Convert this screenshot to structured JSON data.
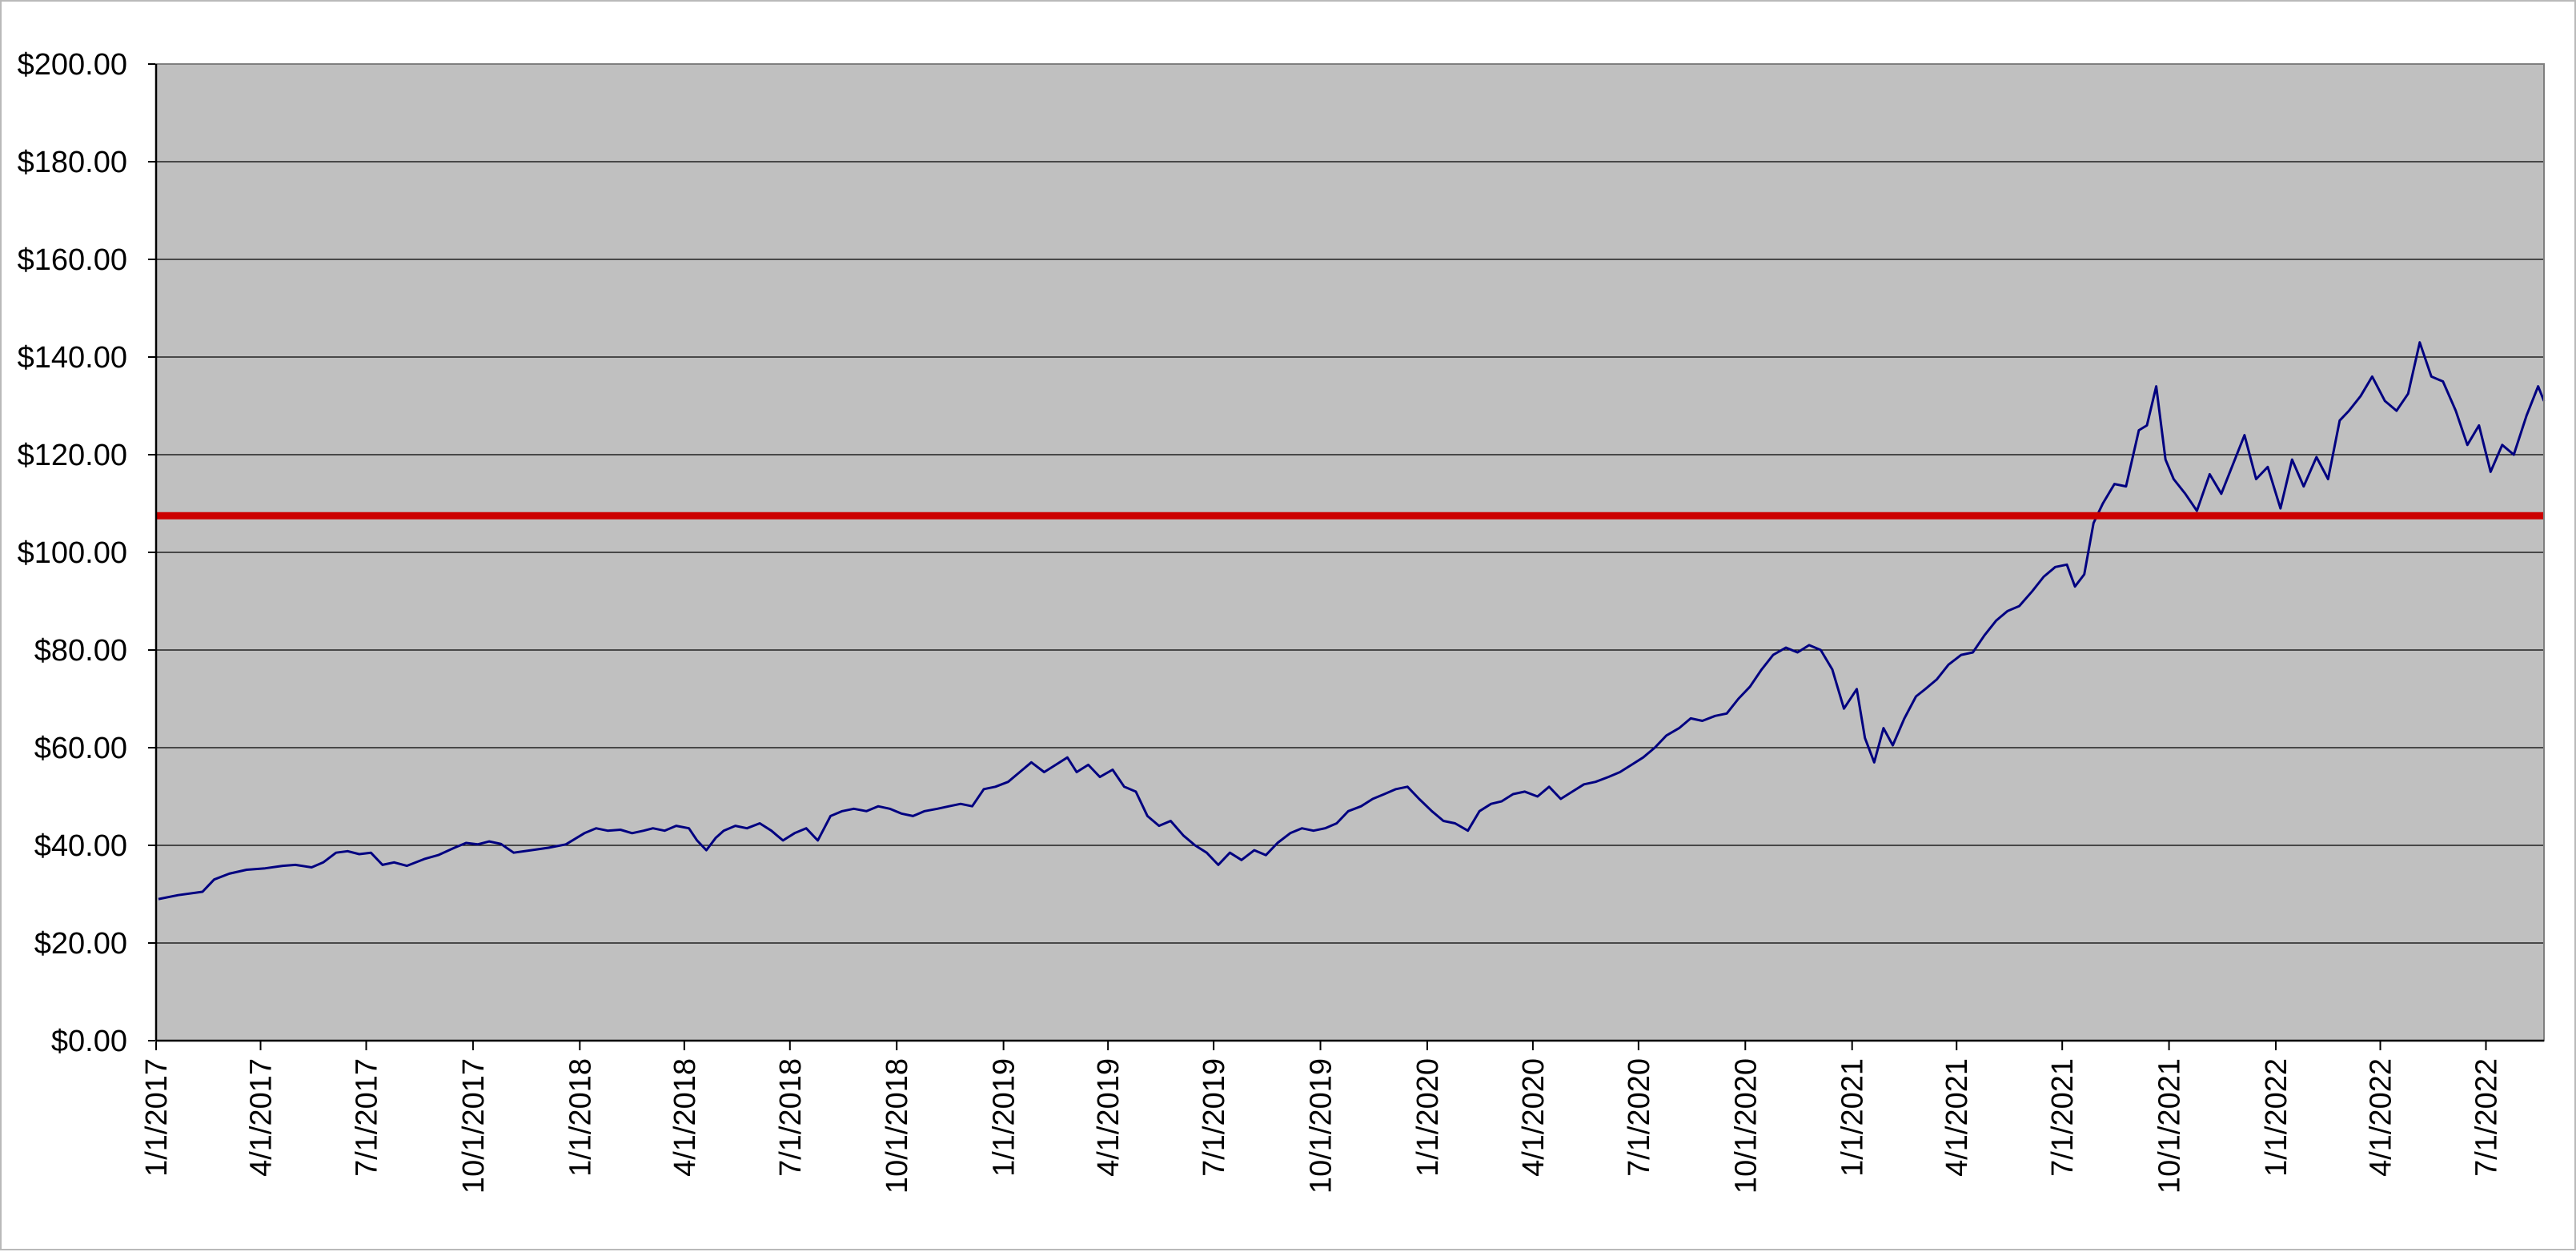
{
  "chart_data": {
    "type": "line",
    "title": "",
    "xlabel": "",
    "ylabel": "",
    "ylim": [
      0,
      200
    ],
    "xlim": [
      "2017-01-01",
      "2022-08-20"
    ],
    "grid": "horizontal",
    "legend": "none",
    "plot_background": "#c0c0c0",
    "y_ticks": [
      0,
      20,
      40,
      60,
      80,
      100,
      120,
      140,
      160,
      180,
      200
    ],
    "y_tick_labels": [
      "$0.00",
      "$20.00",
      "$40.00",
      "$60.00",
      "$80.00",
      "$100.00",
      "$120.00",
      "$140.00",
      "$160.00",
      "$180.00",
      "$200.00"
    ],
    "x_ticks": [
      "2017-01-01",
      "2017-04-01",
      "2017-07-01",
      "2017-10-01",
      "2018-01-01",
      "2018-04-01",
      "2018-07-01",
      "2018-10-01",
      "2019-01-01",
      "2019-04-01",
      "2019-07-01",
      "2019-10-01",
      "2020-01-01",
      "2020-04-01",
      "2020-07-01",
      "2020-10-01",
      "2021-01-01",
      "2021-04-01",
      "2021-07-01",
      "2021-10-01",
      "2022-01-01",
      "2022-04-01",
      "2022-07-01"
    ],
    "x_tick_labels": [
      "1/1/2017",
      "4/1/2017",
      "7/1/2017",
      "10/1/2017",
      "1/1/2018",
      "4/1/2018",
      "7/1/2018",
      "10/1/2018",
      "1/1/2019",
      "4/1/2019",
      "7/1/2019",
      "10/1/2019",
      "1/1/2020",
      "4/1/2020",
      "7/1/2020",
      "10/1/2020",
      "1/1/2021",
      "4/1/2021",
      "7/1/2021",
      "10/1/2021",
      "1/1/2022",
      "4/1/2022",
      "7/1/2022"
    ],
    "reference_line": {
      "y": 107.5,
      "color": "#cc0000"
    },
    "series": [
      {
        "color": "#000080",
        "points": [
          [
            "2017-01-03",
            29.0
          ],
          [
            "2017-01-20",
            29.8
          ],
          [
            "2017-02-10",
            30.5
          ],
          [
            "2017-02-20",
            33.0
          ],
          [
            "2017-03-05",
            34.2
          ],
          [
            "2017-03-20",
            35.0
          ],
          [
            "2017-04-05",
            35.3
          ],
          [
            "2017-04-20",
            35.8
          ],
          [
            "2017-05-01",
            36.0
          ],
          [
            "2017-05-15",
            35.5
          ],
          [
            "2017-05-25",
            36.5
          ],
          [
            "2017-06-05",
            38.5
          ],
          [
            "2017-06-15",
            38.8
          ],
          [
            "2017-06-25",
            38.2
          ],
          [
            "2017-07-05",
            38.5
          ],
          [
            "2017-07-15",
            36.0
          ],
          [
            "2017-07-25",
            36.5
          ],
          [
            "2017-08-05",
            35.8
          ],
          [
            "2017-08-20",
            37.2
          ],
          [
            "2017-09-01",
            38.0
          ],
          [
            "2017-09-15",
            39.5
          ],
          [
            "2017-09-25",
            40.5
          ],
          [
            "2017-10-05",
            40.2
          ],
          [
            "2017-10-15",
            40.8
          ],
          [
            "2017-10-25",
            40.3
          ],
          [
            "2017-11-05",
            38.5
          ],
          [
            "2017-11-20",
            39.0
          ],
          [
            "2017-12-05",
            39.5
          ],
          [
            "2017-12-20",
            40.2
          ],
          [
            "2018-01-05",
            42.5
          ],
          [
            "2018-01-15",
            43.5
          ],
          [
            "2018-01-25",
            43.0
          ],
          [
            "2018-02-05",
            43.2
          ],
          [
            "2018-02-15",
            42.5
          ],
          [
            "2018-02-25",
            43.0
          ],
          [
            "2018-03-05",
            43.5
          ],
          [
            "2018-03-15",
            43.0
          ],
          [
            "2018-03-25",
            44.0
          ],
          [
            "2018-04-05",
            43.5
          ],
          [
            "2018-04-12",
            41.0
          ],
          [
            "2018-04-20",
            39.0
          ],
          [
            "2018-04-28",
            41.5
          ],
          [
            "2018-05-05",
            43.0
          ],
          [
            "2018-05-15",
            44.0
          ],
          [
            "2018-05-25",
            43.5
          ],
          [
            "2018-06-05",
            44.5
          ],
          [
            "2018-06-15",
            43.0
          ],
          [
            "2018-06-20",
            42.0
          ],
          [
            "2018-06-25",
            41.0
          ],
          [
            "2018-07-05",
            42.5
          ],
          [
            "2018-07-15",
            43.5
          ],
          [
            "2018-07-25",
            41.0
          ],
          [
            "2018-08-05",
            46.0
          ],
          [
            "2018-08-15",
            47.0
          ],
          [
            "2018-08-25",
            47.5
          ],
          [
            "2018-09-05",
            47.0
          ],
          [
            "2018-09-15",
            48.0
          ],
          [
            "2018-09-25",
            47.5
          ],
          [
            "2018-10-05",
            46.5
          ],
          [
            "2018-10-15",
            46.0
          ],
          [
            "2018-10-25",
            47.0
          ],
          [
            "2018-11-05",
            47.5
          ],
          [
            "2018-11-15",
            48.0
          ],
          [
            "2018-11-25",
            48.5
          ],
          [
            "2018-12-05",
            48.0
          ],
          [
            "2018-12-15",
            51.5
          ],
          [
            "2018-12-25",
            52.0
          ],
          [
            "2019-01-05",
            53.0
          ],
          [
            "2019-01-15",
            55.0
          ],
          [
            "2019-01-25",
            57.0
          ],
          [
            "2019-02-05",
            55.0
          ],
          [
            "2019-02-15",
            56.5
          ],
          [
            "2019-02-25",
            58.0
          ],
          [
            "2019-03-05",
            55.0
          ],
          [
            "2019-03-15",
            56.5
          ],
          [
            "2019-03-25",
            54.0
          ],
          [
            "2019-04-05",
            55.5
          ],
          [
            "2019-04-15",
            52.0
          ],
          [
            "2019-04-25",
            51.0
          ],
          [
            "2019-05-05",
            46.0
          ],
          [
            "2019-05-15",
            44.0
          ],
          [
            "2019-05-25",
            45.0
          ],
          [
            "2019-06-05",
            42.0
          ],
          [
            "2019-06-15",
            40.0
          ],
          [
            "2019-06-25",
            38.5
          ],
          [
            "2019-07-05",
            36.0
          ],
          [
            "2019-07-15",
            38.5
          ],
          [
            "2019-07-25",
            37.0
          ],
          [
            "2019-08-05",
            39.0
          ],
          [
            "2019-08-15",
            38.0
          ],
          [
            "2019-08-25",
            40.5
          ],
          [
            "2019-09-05",
            42.5
          ],
          [
            "2019-09-15",
            43.5
          ],
          [
            "2019-09-25",
            43.0
          ],
          [
            "2019-10-05",
            43.5
          ],
          [
            "2019-10-15",
            44.5
          ],
          [
            "2019-10-25",
            47.0
          ],
          [
            "2019-11-05",
            48.0
          ],
          [
            "2019-11-15",
            49.5
          ],
          [
            "2019-11-25",
            50.5
          ],
          [
            "2019-12-05",
            51.5
          ],
          [
            "2019-12-15",
            52.0
          ],
          [
            "2019-12-25",
            49.5
          ],
          [
            "2020-01-05",
            47.0
          ],
          [
            "2020-01-15",
            45.0
          ],
          [
            "2020-01-25",
            44.5
          ],
          [
            "2020-02-05",
            43.0
          ],
          [
            "2020-02-15",
            47.0
          ],
          [
            "2020-02-25",
            48.5
          ],
          [
            "2020-03-05",
            49.0
          ],
          [
            "2020-03-15",
            50.5
          ],
          [
            "2020-03-25",
            51.0
          ],
          [
            "2020-04-05",
            50.0
          ],
          [
            "2020-04-15",
            52.0
          ],
          [
            "2020-04-25",
            49.5
          ],
          [
            "2020-05-05",
            51.0
          ],
          [
            "2020-05-15",
            52.5
          ],
          [
            "2020-05-25",
            53.0
          ],
          [
            "2020-06-05",
            54.0
          ],
          [
            "2020-06-15",
            55.0
          ],
          [
            "2020-06-25",
            56.5
          ],
          [
            "2020-07-05",
            58.0
          ],
          [
            "2020-07-15",
            60.0
          ],
          [
            "2020-07-25",
            62.5
          ],
          [
            "2020-08-05",
            64.0
          ],
          [
            "2020-08-15",
            66.0
          ],
          [
            "2020-08-25",
            65.5
          ],
          [
            "2020-09-05",
            66.5
          ],
          [
            "2020-09-15",
            67.0
          ],
          [
            "2020-09-25",
            70.0
          ],
          [
            "2020-10-05",
            72.5
          ],
          [
            "2020-10-15",
            76.0
          ],
          [
            "2020-10-25",
            79.0
          ],
          [
            "2020-11-05",
            80.5
          ],
          [
            "2020-11-15",
            79.5
          ],
          [
            "2020-11-25",
            81.0
          ],
          [
            "2020-12-05",
            80.0
          ],
          [
            "2020-12-15",
            76.0
          ],
          [
            "2020-12-25",
            68.0
          ],
          [
            "2021-01-05",
            72.0
          ],
          [
            "2021-01-12",
            62.0
          ],
          [
            "2021-01-20",
            57.0
          ],
          [
            "2021-01-28",
            64.0
          ],
          [
            "2021-02-05",
            60.5
          ],
          [
            "2021-02-15",
            66.0
          ],
          [
            "2021-02-25",
            70.5
          ],
          [
            "2021-03-05",
            72.0
          ],
          [
            "2021-03-15",
            74.0
          ],
          [
            "2021-03-25",
            77.0
          ],
          [
            "2021-04-05",
            79.0
          ],
          [
            "2021-04-15",
            79.5
          ],
          [
            "2021-04-25",
            83.0
          ],
          [
            "2021-05-05",
            86.0
          ],
          [
            "2021-05-15",
            88.0
          ],
          [
            "2021-05-25",
            89.0
          ],
          [
            "2021-06-05",
            92.0
          ],
          [
            "2021-06-15",
            95.0
          ],
          [
            "2021-06-25",
            97.0
          ],
          [
            "2021-07-05",
            97.5
          ],
          [
            "2021-07-12",
            93.0
          ],
          [
            "2021-07-20",
            95.5
          ],
          [
            "2021-07-28",
            106.0
          ],
          [
            "2021-08-05",
            110.0
          ],
          [
            "2021-08-15",
            114.0
          ],
          [
            "2021-08-25",
            113.5
          ],
          [
            "2021-09-05",
            125.0
          ],
          [
            "2021-09-12",
            126.0
          ],
          [
            "2021-09-20",
            134.0
          ],
          [
            "2021-09-28",
            119.0
          ],
          [
            "2021-10-05",
            115.0
          ],
          [
            "2021-10-15",
            112.0
          ],
          [
            "2021-10-25",
            108.5
          ],
          [
            "2021-11-05",
            116.0
          ],
          [
            "2021-11-15",
            112.0
          ],
          [
            "2021-11-25",
            118.0
          ],
          [
            "2021-12-05",
            124.0
          ],
          [
            "2021-12-15",
            115.0
          ],
          [
            "2021-12-25",
            117.5
          ],
          [
            "2022-01-05",
            109.0
          ],
          [
            "2022-01-15",
            119.0
          ],
          [
            "2022-01-25",
            113.5
          ],
          [
            "2022-02-05",
            119.5
          ],
          [
            "2022-02-15",
            115.0
          ],
          [
            "2022-02-25",
            127.0
          ],
          [
            "2022-03-05",
            129.0
          ],
          [
            "2022-03-15",
            132.0
          ],
          [
            "2022-03-25",
            136.0
          ],
          [
            "2022-04-05",
            131.0
          ],
          [
            "2022-04-15",
            129.0
          ],
          [
            "2022-04-25",
            132.5
          ],
          [
            "2022-05-05",
            143.0
          ],
          [
            "2022-05-15",
            136.0
          ],
          [
            "2022-05-25",
            135.0
          ],
          [
            "2022-06-05",
            129.0
          ],
          [
            "2022-06-15",
            122.0
          ],
          [
            "2022-06-25",
            126.0
          ],
          [
            "2022-07-05",
            116.5
          ],
          [
            "2022-07-15",
            122.0
          ],
          [
            "2022-07-25",
            120.0
          ],
          [
            "2022-08-05",
            128.0
          ],
          [
            "2022-08-15",
            134.0
          ],
          [
            "2022-08-20",
            131.0
          ]
        ]
      }
    ]
  }
}
